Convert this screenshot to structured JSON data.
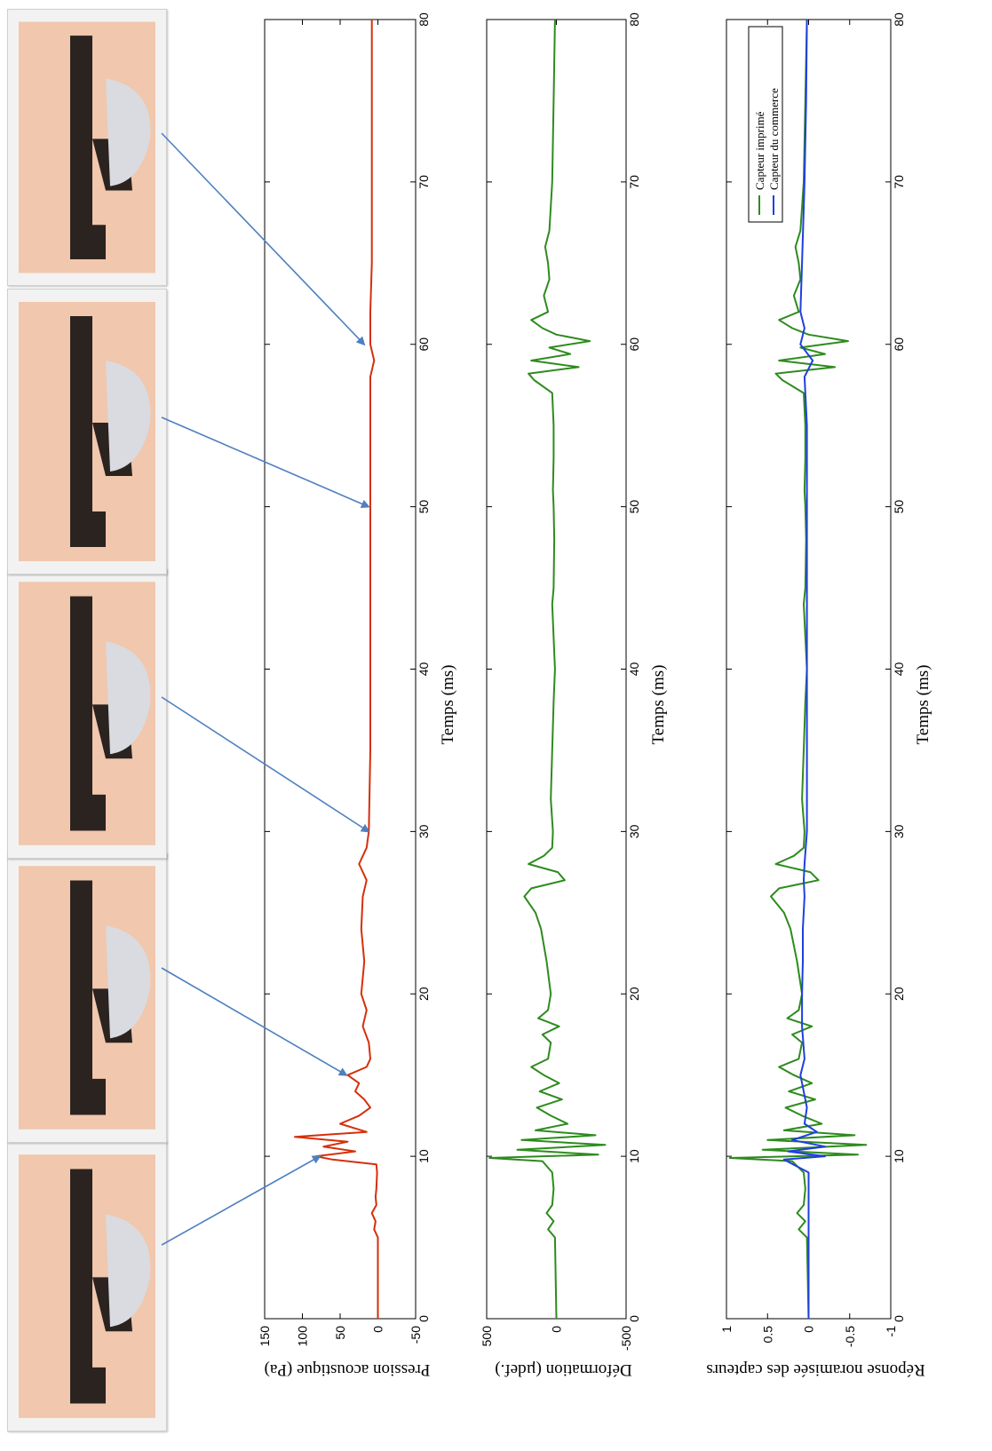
{
  "figure": {
    "photo_frames": [
      {
        "name": "frame-1",
        "time_ms": 10
      },
      {
        "name": "frame-2",
        "time_ms": 15
      },
      {
        "name": "frame-3",
        "time_ms": 30
      },
      {
        "name": "frame-4",
        "time_ms": 50
      },
      {
        "name": "frame-5",
        "time_ms": 60
      }
    ],
    "colors": {
      "pressure": "#d62f0a",
      "printed": "#2e8b1e",
      "commercial": "#1f3fe0",
      "arrow": "#4f7fc0",
      "axis": "#000000"
    }
  },
  "chart_data": [
    {
      "type": "line",
      "xlabel": "Temps (ms)",
      "ylabel": "Pression acoustique (Pa)",
      "xlim": [
        0,
        80
      ],
      "ylim": [
        -50,
        150
      ],
      "x_ticks": [
        "0",
        "10",
        "20",
        "30",
        "40",
        "50",
        "60",
        "70",
        "80"
      ],
      "y_ticks": [
        "150",
        "100",
        "50",
        "0",
        "-50"
      ],
      "series": [
        {
          "color": "#d62f0a",
          "points": [
            [
              0,
              0
            ],
            [
              5,
              0
            ],
            [
              5.5,
              5
            ],
            [
              6,
              3
            ],
            [
              6.5,
              8
            ],
            [
              7,
              2
            ],
            [
              7.5,
              3
            ],
            [
              8,
              2
            ],
            [
              9,
              1
            ],
            [
              9.5,
              2
            ],
            [
              9.8,
              60
            ],
            [
              10,
              82
            ],
            [
              10.3,
              30
            ],
            [
              10.6,
              72
            ],
            [
              10.9,
              40
            ],
            [
              11.2,
              110
            ],
            [
              11.5,
              15
            ],
            [
              12,
              50
            ],
            [
              12.5,
              25
            ],
            [
              13,
              10
            ],
            [
              13.5,
              18
            ],
            [
              14,
              30
            ],
            [
              14.5,
              25
            ],
            [
              15,
              40
            ],
            [
              15.5,
              15
            ],
            [
              16,
              10
            ],
            [
              17,
              12
            ],
            [
              18,
              20
            ],
            [
              19,
              15
            ],
            [
              20,
              22
            ],
            [
              22,
              18
            ],
            [
              24,
              22
            ],
            [
              26,
              20
            ],
            [
              27,
              15
            ],
            [
              28,
              25
            ],
            [
              29,
              15
            ],
            [
              30,
              12
            ],
            [
              35,
              10
            ],
            [
              40,
              10
            ],
            [
              45,
              10
            ],
            [
              50,
              10
            ],
            [
              55,
              10
            ],
            [
              58,
              10
            ],
            [
              59,
              5
            ],
            [
              60,
              10
            ],
            [
              62,
              10
            ],
            [
              65,
              8
            ],
            [
              70,
              8
            ],
            [
              75,
              8
            ],
            [
              80,
              8
            ]
          ]
        }
      ]
    },
    {
      "type": "line",
      "xlabel": "Temps (ms)",
      "ylabel": "Déformation (µdef.)",
      "xlim": [
        0,
        80
      ],
      "ylim": [
        -500,
        500
      ],
      "x_ticks": [
        "0",
        "10",
        "20",
        "30",
        "40",
        "50",
        "60",
        "70",
        "80"
      ],
      "y_ticks": [
        "500",
        "0",
        "-500"
      ],
      "series": [
        {
          "color": "#2e8b1e",
          "points": [
            [
              0,
              0
            ],
            [
              5,
              10
            ],
            [
              5.5,
              60
            ],
            [
              6,
              20
            ],
            [
              6.5,
              70
            ],
            [
              7,
              30
            ],
            [
              8,
              20
            ],
            [
              9,
              30
            ],
            [
              9.7,
              100
            ],
            [
              9.9,
              480
            ],
            [
              10.1,
              -300
            ],
            [
              10.4,
              280
            ],
            [
              10.7,
              -350
            ],
            [
              11,
              250
            ],
            [
              11.3,
              -280
            ],
            [
              11.6,
              150
            ],
            [
              12,
              -80
            ],
            [
              12.5,
              40
            ],
            [
              13,
              140
            ],
            [
              13.5,
              -40
            ],
            [
              14,
              120
            ],
            [
              14.5,
              -20
            ],
            [
              15,
              90
            ],
            [
              15.5,
              180
            ],
            [
              16,
              60
            ],
            [
              17,
              40
            ],
            [
              17.5,
              100
            ],
            [
              18,
              -20
            ],
            [
              18.5,
              130
            ],
            [
              19,
              60
            ],
            [
              20,
              40
            ],
            [
              22,
              70
            ],
            [
              24,
              110
            ],
            [
              25,
              150
            ],
            [
              26,
              230
            ],
            [
              26.5,
              180
            ],
            [
              27,
              -60
            ],
            [
              27.5,
              -10
            ],
            [
              28,
              200
            ],
            [
              28.5,
              90
            ],
            [
              29,
              30
            ],
            [
              30,
              25
            ],
            [
              32,
              40
            ],
            [
              35,
              30
            ],
            [
              38,
              20
            ],
            [
              40,
              10
            ],
            [
              44,
              30
            ],
            [
              45,
              20
            ],
            [
              48,
              15
            ],
            [
              50,
              20
            ],
            [
              51,
              25
            ],
            [
              53,
              20
            ],
            [
              55,
              20
            ],
            [
              57,
              30
            ],
            [
              57.8,
              160
            ],
            [
              58.2,
              200
            ],
            [
              58.6,
              -160
            ],
            [
              59,
              180
            ],
            [
              59.4,
              -100
            ],
            [
              59.8,
              50
            ],
            [
              60.2,
              -240
            ],
            [
              60.6,
              0
            ],
            [
              61,
              100
            ],
            [
              61.5,
              180
            ],
            [
              62,
              60
            ],
            [
              63,
              90
            ],
            [
              64,
              50
            ],
            [
              65,
              60
            ],
            [
              66,
              80
            ],
            [
              67,
              50
            ],
            [
              70,
              30
            ],
            [
              75,
              20
            ],
            [
              80,
              10
            ]
          ]
        }
      ]
    },
    {
      "type": "line",
      "xlabel": "Temps (ms)",
      "ylabel": "Réponse noramisée des capteurs",
      "xlim": [
        0,
        80
      ],
      "ylim": [
        -1,
        1
      ],
      "x_ticks": [
        "0",
        "10",
        "20",
        "30",
        "40",
        "50",
        "60",
        "70",
        "80"
      ],
      "y_ticks": [
        "1",
        "0.5",
        "0",
        "-0.5",
        "-1"
      ],
      "legend": {
        "position": "top-right",
        "entries": [
          "Capteur imprimé",
          "Capteur du commerce"
        ]
      },
      "series": [
        {
          "name": "Capteur imprimé",
          "color": "#2e8b1e",
          "points": [
            [
              0,
              0
            ],
            [
              5,
              0.02
            ],
            [
              5.5,
              0.12
            ],
            [
              6,
              0.04
            ],
            [
              6.5,
              0.14
            ],
            [
              7,
              0.06
            ],
            [
              8,
              0.04
            ],
            [
              9,
              0.06
            ],
            [
              9.7,
              0.2
            ],
            [
              9.9,
              0.96
            ],
            [
              10.1,
              -0.6
            ],
            [
              10.4,
              0.56
            ],
            [
              10.7,
              -0.7
            ],
            [
              11,
              0.5
            ],
            [
              11.3,
              -0.56
            ],
            [
              11.6,
              0.3
            ],
            [
              12,
              -0.16
            ],
            [
              12.5,
              0.08
            ],
            [
              13,
              0.28
            ],
            [
              13.5,
              -0.08
            ],
            [
              14,
              0.24
            ],
            [
              14.5,
              -0.04
            ],
            [
              15,
              0.18
            ],
            [
              15.5,
              0.36
            ],
            [
              16,
              0.12
            ],
            [
              17,
              0.08
            ],
            [
              17.5,
              0.2
            ],
            [
              18,
              -0.04
            ],
            [
              18.5,
              0.26
            ],
            [
              19,
              0.12
            ],
            [
              20,
              0.08
            ],
            [
              22,
              0.14
            ],
            [
              24,
              0.22
            ],
            [
              25,
              0.3
            ],
            [
              26,
              0.46
            ],
            [
              26.5,
              0.36
            ],
            [
              27,
              -0.12
            ],
            [
              27.5,
              -0.02
            ],
            [
              28,
              0.4
            ],
            [
              28.5,
              0.18
            ],
            [
              29,
              0.06
            ],
            [
              30,
              0.05
            ],
            [
              32,
              0.08
            ],
            [
              35,
              0.06
            ],
            [
              38,
              0.04
            ],
            [
              40,
              0.02
            ],
            [
              44,
              0.06
            ],
            [
              45,
              0.04
            ],
            [
              48,
              0.03
            ],
            [
              50,
              0.04
            ],
            [
              51,
              0.05
            ],
            [
              53,
              0.04
            ],
            [
              55,
              0.04
            ],
            [
              57,
              0.06
            ],
            [
              57.8,
              0.32
            ],
            [
              58.2,
              0.4
            ],
            [
              58.6,
              -0.32
            ],
            [
              59,
              0.36
            ],
            [
              59.4,
              -0.2
            ],
            [
              59.8,
              0.1
            ],
            [
              60.2,
              -0.48
            ],
            [
              60.6,
              0
            ],
            [
              61,
              0.2
            ],
            [
              61.5,
              0.36
            ],
            [
              62,
              0.12
            ],
            [
              63,
              0.18
            ],
            [
              64,
              0.1
            ],
            [
              65,
              0.12
            ],
            [
              66,
              0.16
            ],
            [
              67,
              0.1
            ],
            [
              70,
              0.06
            ],
            [
              75,
              0.04
            ],
            [
              80,
              0.02
            ]
          ]
        },
        {
          "name": "Capteur du commerce",
          "color": "#1f3fe0",
          "points": [
            [
              0,
              0
            ],
            [
              5,
              0
            ],
            [
              9,
              0
            ],
            [
              9.8,
              0.3
            ],
            [
              10,
              -0.2
            ],
            [
              10.3,
              0.25
            ],
            [
              10.6,
              -0.2
            ],
            [
              11,
              0.2
            ],
            [
              11.5,
              -0.1
            ],
            [
              12,
              0.05
            ],
            [
              13,
              0.02
            ],
            [
              15,
              0.1
            ],
            [
              16,
              0.05
            ],
            [
              18,
              0.08
            ],
            [
              20,
              0.08
            ],
            [
              22,
              0.07
            ],
            [
              24,
              0.07
            ],
            [
              26,
              0.05
            ],
            [
              27,
              0.06
            ],
            [
              28,
              0.05
            ],
            [
              30,
              0.02
            ],
            [
              35,
              0.02
            ],
            [
              40,
              0.02
            ],
            [
              45,
              0.02
            ],
            [
              50,
              0.02
            ],
            [
              55,
              0.02
            ],
            [
              58,
              0.05
            ],
            [
              59,
              -0.05
            ],
            [
              60,
              0.1
            ],
            [
              61,
              0.05
            ],
            [
              62,
              0.1
            ],
            [
              65,
              0.08
            ],
            [
              70,
              0.05
            ],
            [
              75,
              0.03
            ],
            [
              80,
              0.02
            ]
          ]
        }
      ]
    }
  ]
}
